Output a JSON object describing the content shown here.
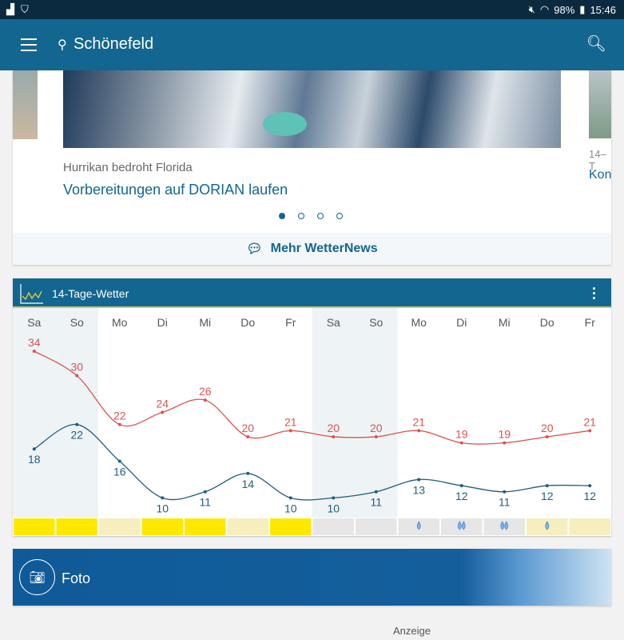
{
  "status": {
    "battery": "98%",
    "time": "15:46"
  },
  "appbar": {
    "location": "Schönefeld",
    "menu_icon": "hamburger-icon",
    "search_icon": "search-icon"
  },
  "news": {
    "kicker": "Hurrikan bedroht Florida",
    "headline": "Vorbereitungen auf DORIAN laufen",
    "next_kicker": "14–T",
    "next_headline": "Kon",
    "dots": 4,
    "active_dot": 0,
    "more_label": "Mehr WetterNews"
  },
  "forecast": {
    "title": "14-Tage-Wetter",
    "chart_data": {
      "type": "line",
      "categories": [
        "Sa",
        "So",
        "Mo",
        "Di",
        "Mi",
        "Do",
        "Fr",
        "Sa",
        "So",
        "Mo",
        "Di",
        "Mi",
        "Do",
        "Fr"
      ],
      "series": [
        {
          "values": [
            34,
            30,
            22,
            24,
            26,
            20,
            21,
            20,
            20,
            21,
            19,
            19,
            20,
            21
          ],
          "color": "#d9534f"
        },
        {
          "values": [
            18,
            22,
            16,
            10,
            11,
            14,
            10,
            10,
            11,
            13,
            12,
            11,
            12,
            12
          ],
          "color": "#1f5f7a"
        }
      ],
      "weekend_columns": [
        0,
        1,
        7,
        8
      ],
      "condition_strip": [
        "sun",
        "sun",
        "light",
        "sun",
        "sun",
        "light",
        "sun",
        "grey",
        "grey",
        "rain1",
        "rain2",
        "rain2",
        "rain1-light",
        "light"
      ]
    }
  },
  "foto": {
    "label": "Foto"
  },
  "ad": {
    "label": "Anzeige"
  }
}
